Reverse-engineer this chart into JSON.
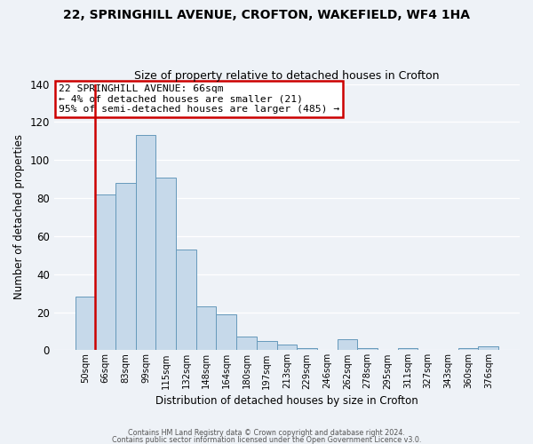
{
  "title_line1": "22, SPRINGHILL AVENUE, CROFTON, WAKEFIELD, WF4 1HA",
  "title_line2": "Size of property relative to detached houses in Crofton",
  "xlabel": "Distribution of detached houses by size in Crofton",
  "ylabel": "Number of detached properties",
  "bar_labels": [
    "50sqm",
    "66sqm",
    "83sqm",
    "99sqm",
    "115sqm",
    "132sqm",
    "148sqm",
    "164sqm",
    "180sqm",
    "197sqm",
    "213sqm",
    "229sqm",
    "246sqm",
    "262sqm",
    "278sqm",
    "295sqm",
    "311sqm",
    "327sqm",
    "343sqm",
    "360sqm",
    "376sqm"
  ],
  "bar_values": [
    28,
    82,
    88,
    113,
    91,
    53,
    23,
    19,
    7,
    5,
    3,
    1,
    0,
    6,
    1,
    0,
    1,
    0,
    0,
    1,
    2
  ],
  "bar_color": "#c6d9ea",
  "bar_edge_color": "#6699bb",
  "red_line_after_index": 1,
  "highlight_bar_edge_color": "#cc0000",
  "ylim": [
    0,
    140
  ],
  "yticks": [
    0,
    20,
    40,
    60,
    80,
    100,
    120,
    140
  ],
  "annotation_line1": "22 SPRINGHILL AVENUE: 66sqm",
  "annotation_line2": "← 4% of detached houses are smaller (21)",
  "annotation_line3": "95% of semi-detached houses are larger (485) →",
  "annotation_box_color": "#ffffff",
  "annotation_box_edge_color": "#cc0000",
  "footer_line1": "Contains HM Land Registry data © Crown copyright and database right 2024.",
  "footer_line2": "Contains public sector information licensed under the Open Government Licence v3.0.",
  "background_color": "#eef2f7",
  "grid_color": "#ffffff",
  "fig_width": 6.0,
  "fig_height": 5.0
}
